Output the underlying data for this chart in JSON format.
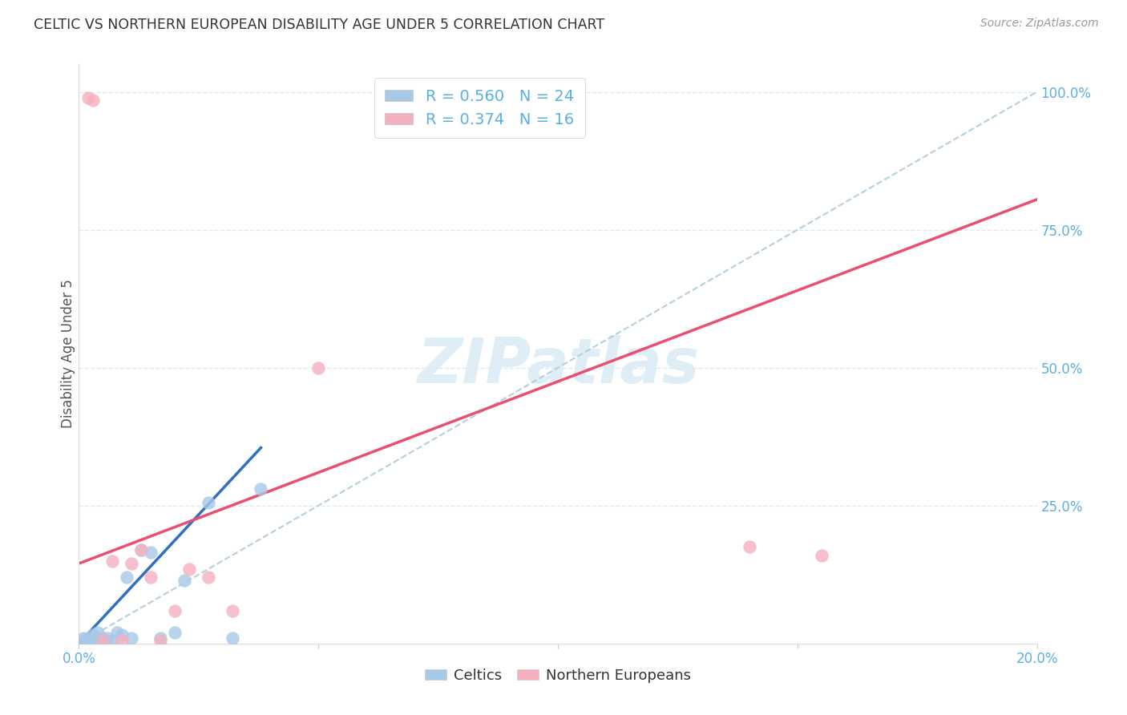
{
  "title": "CELTIC VS NORTHERN EUROPEAN DISABILITY AGE UNDER 5 CORRELATION CHART",
  "source": "Source: ZipAtlas.com",
  "ylabel": "Disability Age Under 5",
  "watermark": "ZIPatlas",
  "xlim": [
    0.0,
    0.2
  ],
  "ylim": [
    0.0,
    1.05
  ],
  "ytick_labels": [
    "25.0%",
    "50.0%",
    "75.0%",
    "100.0%"
  ],
  "ytick_positions": [
    0.25,
    0.5,
    0.75,
    1.0
  ],
  "legend_r_celtic": "0.560",
  "legend_n_celtic": "24",
  "legend_r_northern": "0.374",
  "legend_n_northern": "16",
  "celtic_color": "#a8c8e8",
  "northern_color": "#f5b0c0",
  "celtic_line_color": "#3070c0",
  "northern_line_color": "#e85070",
  "ref_line_color": "#b5cfe0",
  "axis_tick_color": "#5ab0e0",
  "grid_color": "#ddeaf5",
  "celtic_scatter_x": [
    0.001,
    0.001,
    0.002,
    0.002,
    0.003,
    0.003,
    0.004,
    0.004,
    0.005,
    0.005,
    0.006,
    0.007,
    0.008,
    0.009,
    0.01,
    0.011,
    0.013,
    0.015,
    0.017,
    0.02,
    0.022,
    0.027,
    0.032,
    0.038
  ],
  "celtic_scatter_y": [
    0.005,
    0.01,
    0.005,
    0.01,
    0.005,
    0.015,
    0.005,
    0.02,
    0.005,
    0.01,
    0.01,
    0.005,
    0.02,
    0.015,
    0.12,
    0.01,
    0.17,
    0.165,
    0.01,
    0.02,
    0.115,
    0.255,
    0.01,
    0.28
  ],
  "northern_scatter_x": [
    0.002,
    0.003,
    0.005,
    0.007,
    0.009,
    0.011,
    0.013,
    0.015,
    0.017,
    0.02,
    0.023,
    0.027,
    0.032,
    0.05,
    0.14,
    0.155
  ],
  "northern_scatter_y": [
    0.99,
    0.985,
    0.005,
    0.15,
    0.005,
    0.145,
    0.17,
    0.12,
    0.005,
    0.06,
    0.135,
    0.12,
    0.06,
    0.5,
    0.175,
    0.16
  ],
  "celtic_trend_x": [
    0.0,
    0.038
  ],
  "celtic_trend_y": [
    0.0,
    0.355
  ],
  "northern_trend_x": [
    0.0,
    0.2
  ],
  "northern_trend_y": [
    0.145,
    0.805
  ],
  "ref_line_x": [
    0.0,
    0.2
  ],
  "ref_line_y": [
    0.0,
    1.0
  ]
}
